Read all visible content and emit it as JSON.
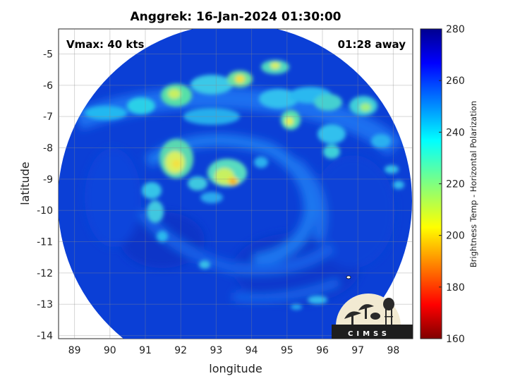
{
  "title": "Anggrek: 16-Jan-2024 01:30:00",
  "vmax_label": "Vmax: 40 kts",
  "away_label": "01:28 away",
  "logo_text": "CIMSS",
  "map": {
    "xlabel": "longitude",
    "ylabel": "latitude",
    "xlim": [
      88.55,
      98.55
    ],
    "ylim": [
      -14.1,
      -4.2
    ],
    "xticks": [
      89,
      90,
      91,
      92,
      93,
      94,
      95,
      96,
      97,
      98
    ],
    "yticks": [
      -5,
      -6,
      -7,
      -8,
      -9,
      -10,
      -11,
      -12,
      -13,
      -14
    ],
    "grid": true,
    "storm_center": {
      "lon": 93.45,
      "lat": -9.05
    },
    "swath_center": {
      "lon": 93.55,
      "lat": -9.35
    }
  },
  "colorbar": {
    "label": "Brightness Temp - Horizontal Polarization",
    "min": 160,
    "max": 280,
    "ticks": [
      280,
      260,
      240,
      220,
      200,
      180,
      160
    ],
    "colormap": "jet"
  },
  "colors": {
    "background_field": "#0b3fd6",
    "cold_warm_low": "#800000",
    "cold_warm_high": "#00008f"
  }
}
